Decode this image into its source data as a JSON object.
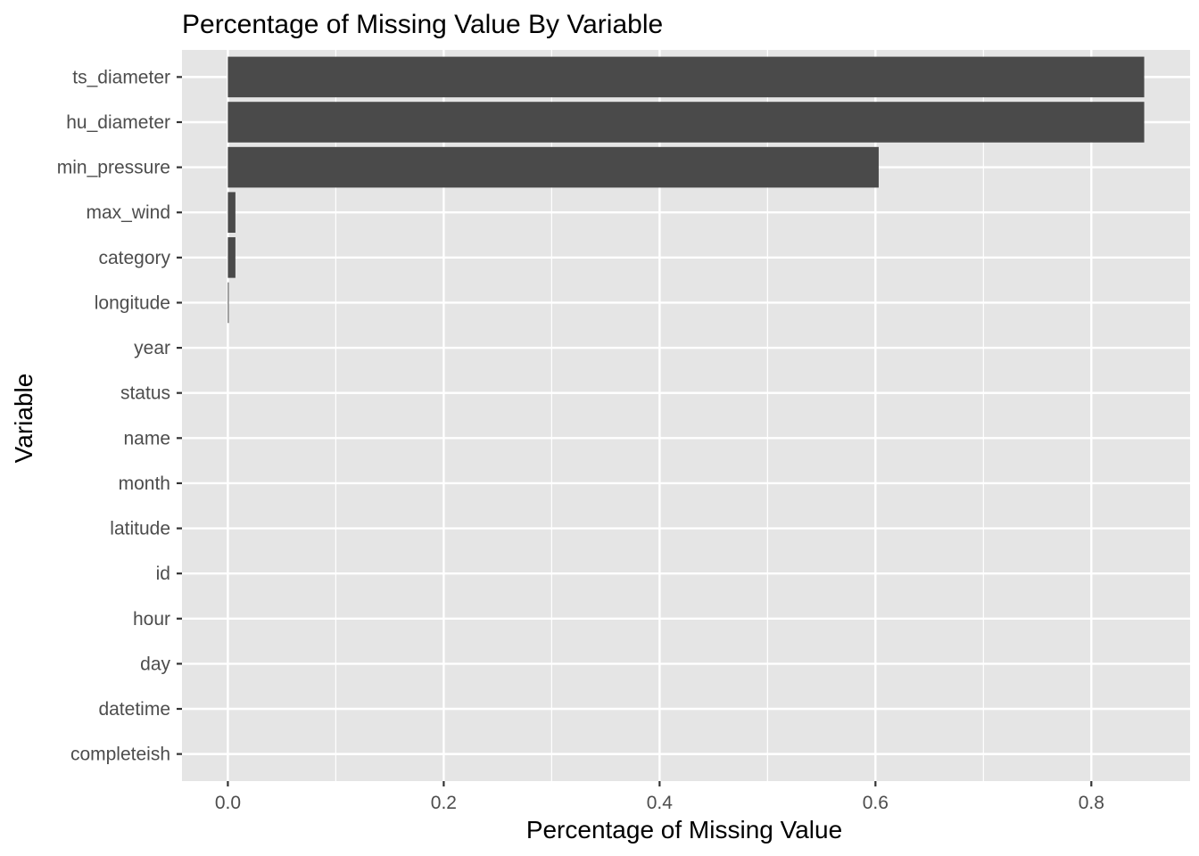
{
  "chart_data": {
    "type": "bar",
    "orientation": "horizontal",
    "title": "Percentage of Missing Value By Variable",
    "xlabel": "Percentage of Missing Value",
    "ylabel": "Variable",
    "categories": [
      "ts_diameter",
      "hu_diameter",
      "min_pressure",
      "max_wind",
      "category",
      "longitude",
      "year",
      "status",
      "name",
      "month",
      "latitude",
      "id",
      "hour",
      "day",
      "datetime",
      "completeish"
    ],
    "values": [
      0.849,
      0.849,
      0.603,
      0.007,
      0.007,
      0.0005,
      0,
      0,
      0,
      0,
      0,
      0,
      0,
      0,
      0,
      0
    ],
    "x_ticks": [
      0.0,
      0.2,
      0.4,
      0.6,
      0.8
    ],
    "x_tick_labels": [
      "0.0",
      "0.2",
      "0.4",
      "0.6",
      "0.8"
    ],
    "xlim": [
      -0.0425,
      0.8915
    ],
    "grid": true,
    "legend": "none",
    "colors": {
      "bar": "#4a4a4a",
      "panel": "#e5e5e5",
      "grid": "#ffffff"
    }
  }
}
